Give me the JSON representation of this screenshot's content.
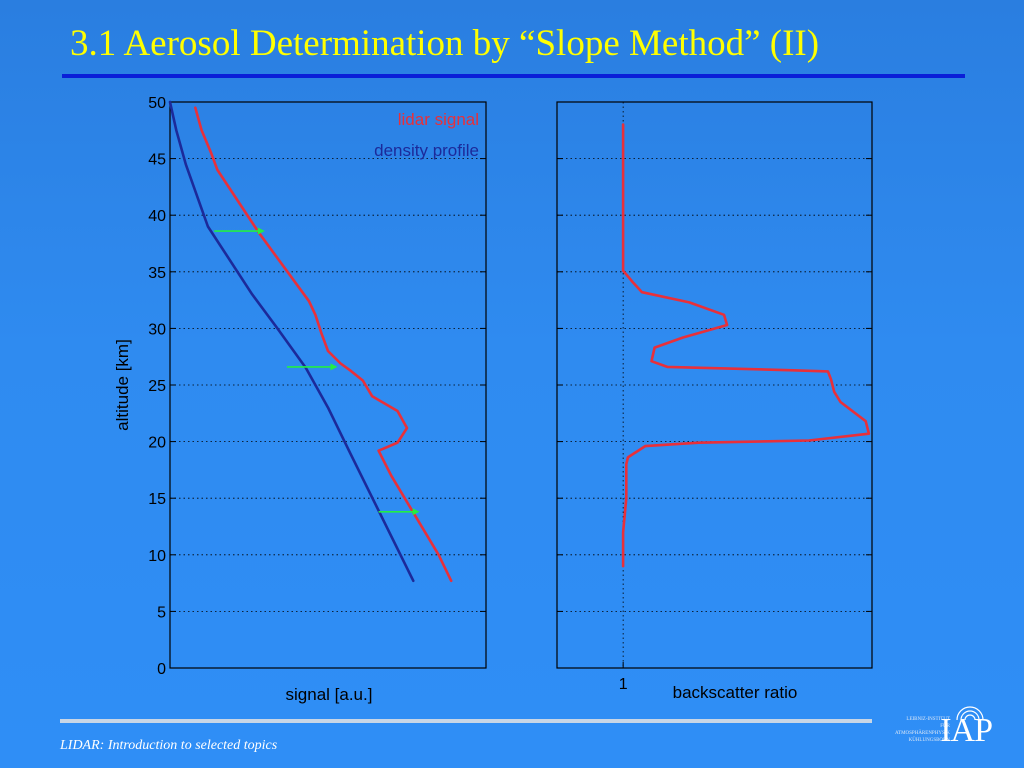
{
  "slide": {
    "title": "3.1 Aerosol Determination by “Slope Method” (II)",
    "footer": "LIDAR: Introduction to selected topics",
    "logo_text": "IAP",
    "logo_small_lines": [
      "LEIBNIZ-INSTITUT",
      "FÜR",
      "ATMOSPHÄRENPHYSIK",
      "KÜHLUNGSBORN"
    ]
  },
  "colors": {
    "title": "#ffff00",
    "lidar_signal": "#e8303a",
    "density_profile": "#1c2a9a",
    "arrow": "#22ee44",
    "axes": "#000000"
  },
  "chart_data": [
    {
      "type": "line",
      "xlabel": "signal [a.u.]",
      "ylabel": "altitude [km]",
      "ylim": [
        0,
        50
      ],
      "xlim": [
        0,
        1
      ],
      "yticks": [
        "0",
        "5",
        "10",
        "15",
        "20",
        "25",
        "30",
        "35",
        "40",
        "45",
        "50"
      ],
      "grid": true,
      "legend": "top-right",
      "x_tick_labels_shown": false,
      "series": [
        {
          "name": "lidar signal",
          "color": "#e8303a",
          "points": [
            [
              0.89,
              7.7
            ],
            [
              0.85,
              10
            ],
            [
              0.7,
              17
            ],
            [
              0.66,
              19.2
            ],
            [
              0.72,
              19.9
            ],
            [
              0.75,
              21.2
            ],
            [
              0.72,
              22.7
            ],
            [
              0.64,
              24
            ],
            [
              0.61,
              25.4
            ],
            [
              0.57,
              26.3
            ],
            [
              0.54,
              26.9
            ],
            [
              0.5,
              28
            ],
            [
              0.48,
              29.5
            ],
            [
              0.46,
              31.2
            ],
            [
              0.44,
              32.4
            ],
            [
              0.28,
              38.5
            ],
            [
              0.15,
              44
            ],
            [
              0.13,
              45.5
            ],
            [
              0.1,
              47.5
            ],
            [
              0.08,
              49.5
            ]
          ]
        },
        {
          "name": "density profile",
          "color": "#1c2a9a",
          "points": [
            [
              0.77,
              7.7
            ],
            [
              0.57,
              19
            ],
            [
              0.5,
              23
            ],
            [
              0.43,
              26.5
            ],
            [
              0.34,
              30
            ],
            [
              0.26,
              33
            ],
            [
              0.12,
              39
            ],
            [
              0.05,
              44.5
            ],
            [
              0.02,
              47.5
            ],
            [
              0.0,
              50
            ]
          ]
        }
      ],
      "annotations": [
        {
          "type": "arrow",
          "y": 38.6,
          "x_from": 0.14,
          "x_to": 0.3
        },
        {
          "type": "arrow",
          "y": 26.6,
          "x_from": 0.37,
          "x_to": 0.53
        },
        {
          "type": "arrow",
          "y": 13.8,
          "x_from": 0.66,
          "x_to": 0.79
        }
      ]
    },
    {
      "type": "line",
      "xlabel": "backscatter ratio",
      "ylabel": "",
      "ylim": [
        0,
        50
      ],
      "xlim": [
        0,
        1
      ],
      "xticks": [
        {
          "value": 0.21,
          "label": "1"
        }
      ],
      "grid": true,
      "series": [
        {
          "name": "",
          "color": "#e8303a",
          "points": [
            [
              0.21,
              9
            ],
            [
              0.21,
              12
            ],
            [
              0.22,
              15
            ],
            [
              0.22,
              18
            ],
            [
              0.225,
              18.6
            ],
            [
              0.28,
              19.6
            ],
            [
              0.45,
              19.9
            ],
            [
              0.8,
              20.1
            ],
            [
              0.99,
              20.7
            ],
            [
              0.98,
              21.8
            ],
            [
              0.9,
              23.5
            ],
            [
              0.88,
              24.4
            ],
            [
              0.87,
              25.5
            ],
            [
              0.86,
              26.2
            ],
            [
              0.75,
              26.3
            ],
            [
              0.35,
              26.6
            ],
            [
              0.3,
              27.1
            ],
            [
              0.31,
              28.3
            ],
            [
              0.4,
              29.2
            ],
            [
              0.54,
              30.3
            ],
            [
              0.53,
              31.2
            ],
            [
              0.42,
              32.3
            ],
            [
              0.27,
              33.2
            ],
            [
              0.24,
              34.1
            ],
            [
              0.225,
              34.6
            ],
            [
              0.21,
              35.1
            ],
            [
              0.21,
              40
            ],
            [
              0.21,
              48
            ]
          ]
        }
      ]
    }
  ]
}
